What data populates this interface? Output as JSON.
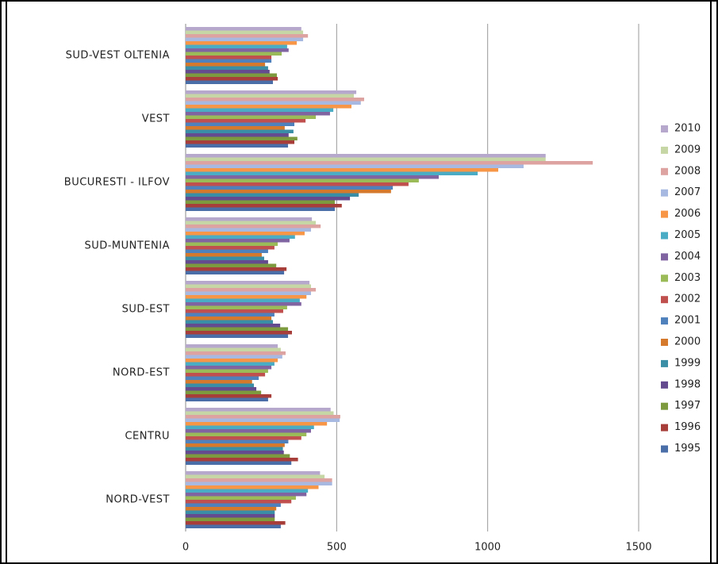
{
  "chart_data": {
    "type": "bar",
    "orientation": "horizontal",
    "categories": [
      "NORD-VEST",
      "CENTRU",
      "NORD-EST",
      "SUD-EST",
      "SUD-MUNTENIA",
      "BUCURESTI - ILFOV",
      "VEST",
      "SUD-VEST OLTENIA"
    ],
    "series": [
      {
        "name": "1995",
        "color": "#4a6ea8",
        "values": [
          315,
          350,
          273,
          339,
          326,
          494,
          339,
          289
        ]
      },
      {
        "name": "1996",
        "color": "#a83e3a",
        "values": [
          330,
          372,
          284,
          352,
          334,
          517,
          360,
          305
        ]
      },
      {
        "name": "1997",
        "color": "#7e9a3e",
        "values": [
          295,
          345,
          250,
          339,
          300,
          494,
          370,
          302
        ]
      },
      {
        "name": "1998",
        "color": "#644a8e",
        "values": [
          295,
          325,
          234,
          313,
          273,
          544,
          341,
          278
        ]
      },
      {
        "name": "1999",
        "color": "#3a8fa6",
        "values": [
          295,
          322,
          226,
          289,
          260,
          573,
          357,
          273
        ]
      },
      {
        "name": "2000",
        "color": "#d57a2d",
        "values": [
          300,
          328,
          220,
          284,
          252,
          680,
          328,
          263
        ]
      },
      {
        "name": "2001",
        "color": "#4f81bd",
        "values": [
          315,
          340,
          242,
          294,
          273,
          686,
          360,
          284
        ]
      },
      {
        "name": "2002",
        "color": "#c0504d",
        "values": [
          350,
          383,
          263,
          323,
          294,
          738,
          397,
          284
        ]
      },
      {
        "name": "2003",
        "color": "#9bbb59",
        "values": [
          365,
          400,
          273,
          336,
          305,
          772,
          431,
          318
        ]
      },
      {
        "name": "2004",
        "color": "#8064a2",
        "values": [
          400,
          415,
          284,
          383,
          344,
          838,
          478,
          341
        ]
      },
      {
        "name": "2005",
        "color": "#4bacc6",
        "values": [
          405,
          425,
          294,
          378,
          362,
          967,
          489,
          336
        ]
      },
      {
        "name": "2006",
        "color": "#f79646",
        "values": [
          440,
          468,
          305,
          400,
          394,
          1035,
          549,
          368
        ]
      },
      {
        "name": "2007",
        "color": "#a7b9e0",
        "values": [
          485,
          510,
          320,
          415,
          415,
          1119,
          580,
          389
        ]
      },
      {
        "name": "2008",
        "color": "#dca3a1",
        "values": [
          485,
          512,
          331,
          431,
          447,
          1348,
          591,
          405
        ]
      },
      {
        "name": "2009",
        "color": "#c6d6a5",
        "values": [
          460,
          490,
          315,
          415,
          431,
          1192,
          557,
          389
        ]
      },
      {
        "name": "2010",
        "color": "#b6a8cc",
        "values": [
          445,
          480,
          305,
          410,
          418,
          1192,
          565,
          383
        ]
      }
    ],
    "xlim": [
      0,
      1500
    ],
    "xticks": [
      0,
      500,
      1000,
      1500
    ],
    "grid": true,
    "legend": "right"
  }
}
